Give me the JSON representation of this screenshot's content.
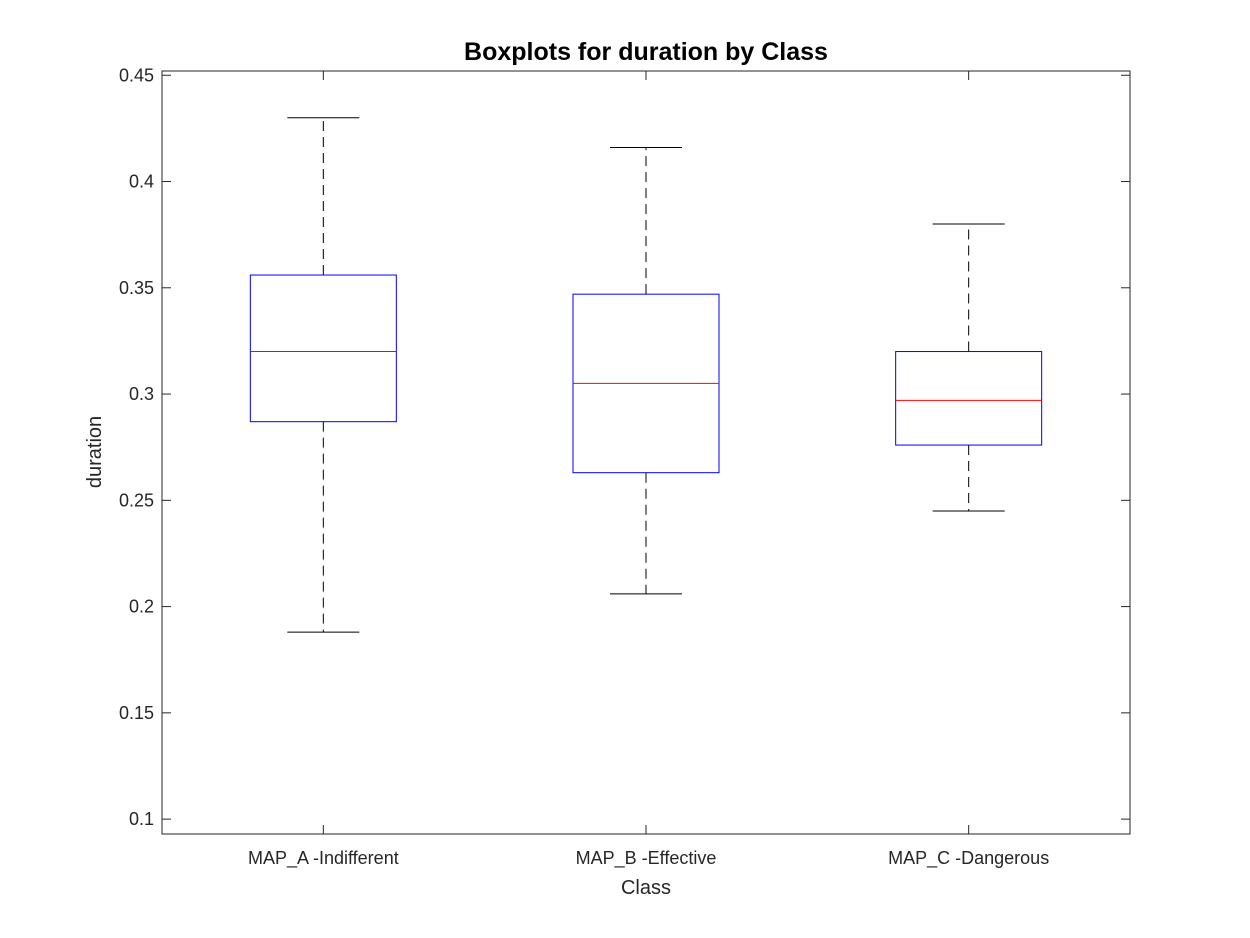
{
  "chart_data": {
    "type": "boxplot",
    "title": "Boxplots for duration by Class",
    "xlabel": "Class",
    "ylabel": "duration",
    "ylim": [
      0.093,
      0.452
    ],
    "yticks": [
      0.1,
      0.15,
      0.2,
      0.25,
      0.3,
      0.35,
      0.4,
      0.45
    ],
    "ytick_labels": [
      "0.1",
      "0.15",
      "0.2",
      "0.25",
      "0.3",
      "0.35",
      "0.4",
      "0.45"
    ],
    "categories": [
      "MAP_A -Indifferent",
      "MAP_B -Effective",
      "MAP_C -Dangerous"
    ],
    "boxes": [
      {
        "whisker_low": 0.188,
        "q1": 0.287,
        "median": 0.32,
        "q3": 0.356,
        "whisker_high": 0.43
      },
      {
        "whisker_low": 0.206,
        "q1": 0.263,
        "median": 0.305,
        "q3": 0.347,
        "whisker_high": 0.416
      },
      {
        "whisker_low": 0.245,
        "q1": 0.276,
        "median": 0.297,
        "q3": 0.32,
        "whisker_high": 0.38
      }
    ],
    "grid": false,
    "colors": {
      "box": "#0000ff",
      "median": "#ff0000",
      "whisker": "#000000",
      "axes": "#262626",
      "text": "#262626"
    }
  }
}
